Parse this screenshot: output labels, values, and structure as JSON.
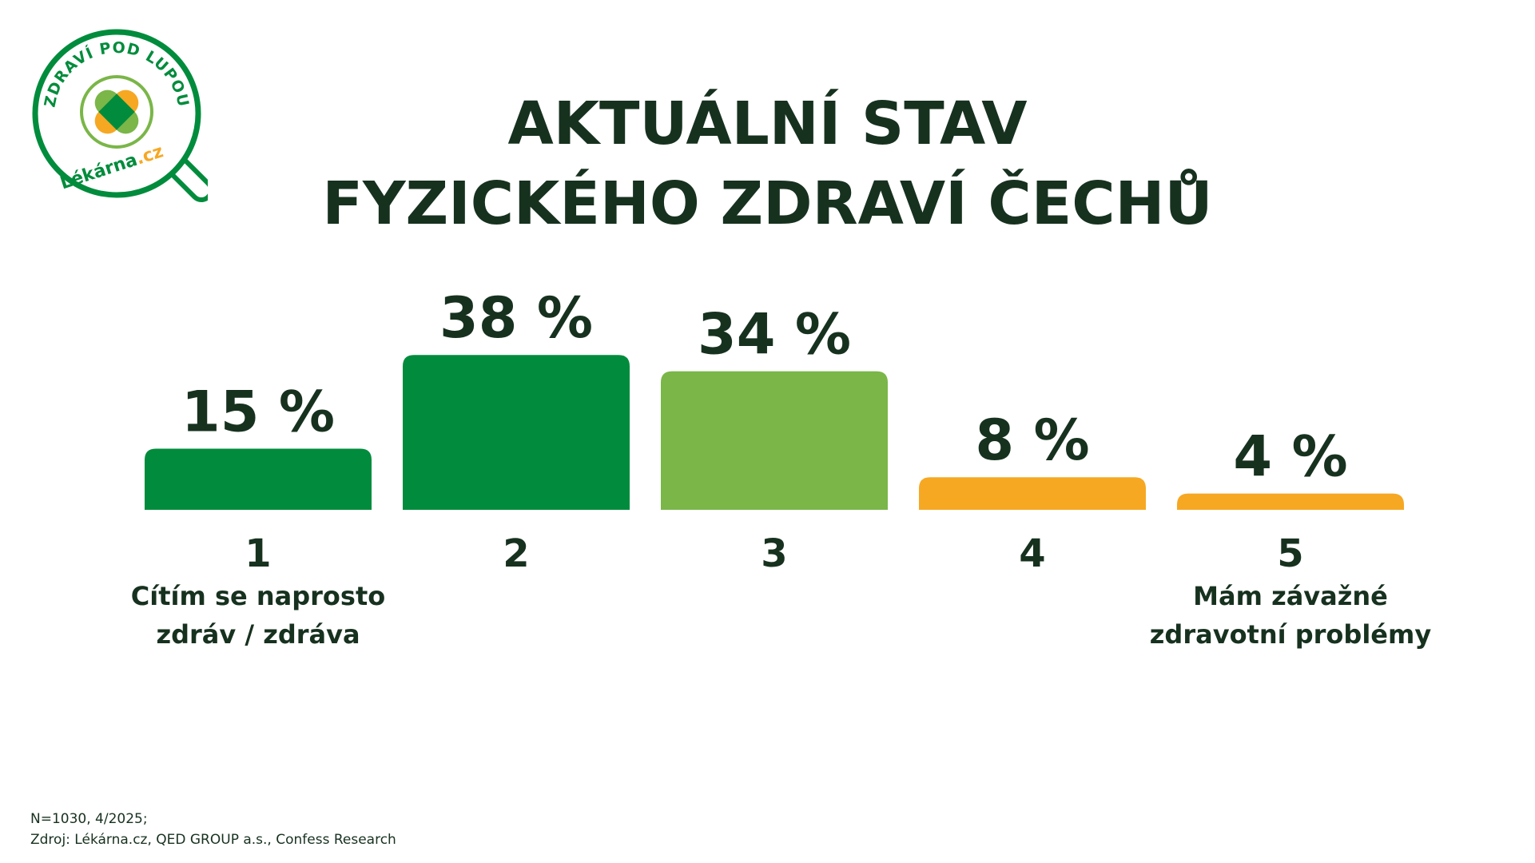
{
  "logo": {
    "ring_text": "ZDRAVÍ POD LUPOU",
    "brand": "Lékárna",
    "brand_suffix": ".cz",
    "icon": "magnifier-cross-icon",
    "colors": {
      "green": "#008c3c",
      "light_green": "#7ab648",
      "orange": "#f6a823"
    }
  },
  "title": {
    "line1": "AKTUÁLNÍ STAV",
    "line2": "FYZICKÉHO ZDRAVÍ ČECHŮ"
  },
  "chart_data": {
    "type": "bar",
    "categories": [
      "1",
      "2",
      "3",
      "4",
      "5"
    ],
    "values": [
      15,
      38,
      34,
      8,
      4
    ],
    "value_labels": [
      "15 %",
      "38 %",
      "34 %",
      "8 %",
      "4 %"
    ],
    "colors": [
      "#008c3c",
      "#008c3c",
      "#7ab648",
      "#f6a823",
      "#f6a823"
    ],
    "category_descriptions": [
      [
        "Cítím se naprosto",
        "zdráv / zdráva"
      ],
      [],
      [],
      [],
      [
        "Mám závažné",
        "zdravotní problémy"
      ]
    ],
    "title": "AKTUÁLNÍ STAV FYZICKÉHO ZDRAVÍ ČECHŮ",
    "xlabel": "",
    "ylabel": "",
    "grid": false
  },
  "footnote": {
    "line1": "N=1030, 4/2025;",
    "line2": "Zdroj: Lékárna.cz, QED GROUP a.s., Confess Research"
  }
}
